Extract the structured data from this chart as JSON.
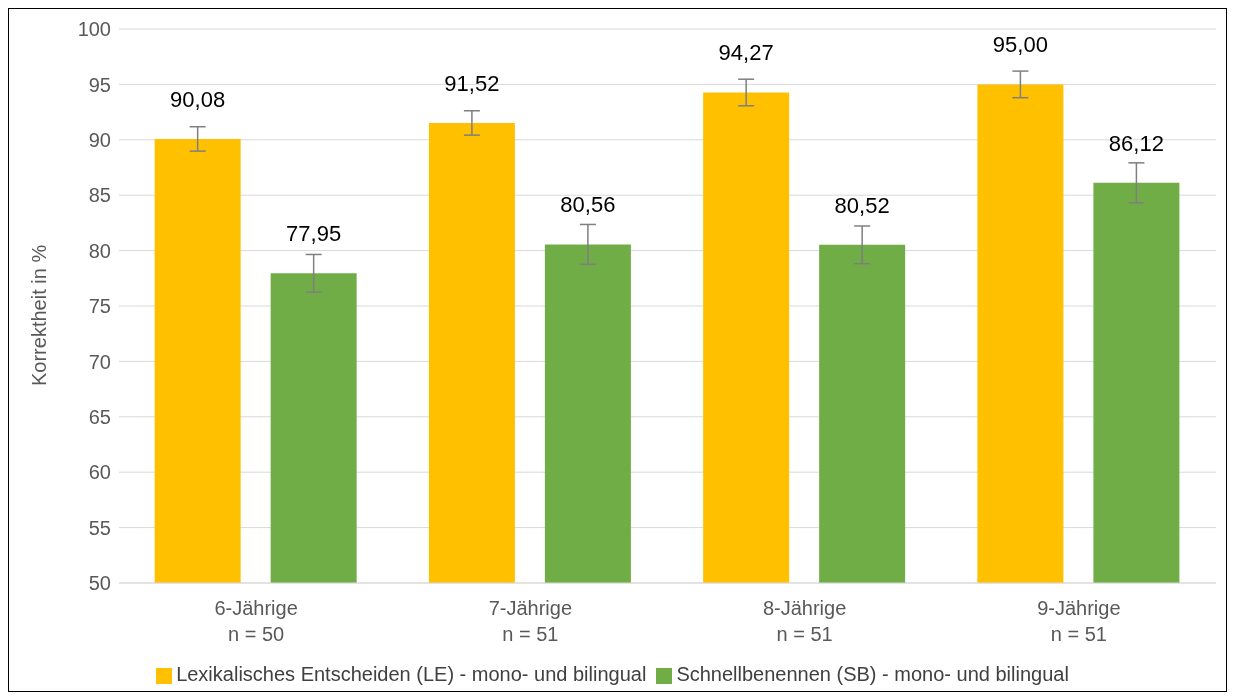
{
  "chart_data": {
    "type": "bar",
    "ylabel": "Korrektheit in %",
    "categories": [
      "6-Jährige\nn = 50",
      "7-Jährige\nn = 51",
      "8-Jährige\nn = 51",
      "9-Jährige\nn = 51"
    ],
    "series": [
      {
        "name": "Lexikalisches Entscheiden (LE) - mono- und bilingual",
        "color": "#ffc000",
        "values": [
          90.08,
          91.52,
          94.27,
          95.0
        ],
        "value_labels": [
          "90,08",
          "91,52",
          "94,27",
          "95,00"
        ],
        "errors": [
          1.1,
          1.1,
          1.2,
          1.2
        ]
      },
      {
        "name": "Schnellbenennen (SB) - mono- und bilingual",
        "color": "#70ad47",
        "values": [
          77.95,
          80.56,
          80.52,
          86.12
        ],
        "value_labels": [
          "77,95",
          "80,56",
          "80,52",
          "86,12"
        ],
        "errors": [
          1.7,
          1.8,
          1.7,
          1.8
        ]
      }
    ],
    "ylim": [
      50,
      100
    ],
    "yticks": [
      50,
      55,
      60,
      65,
      70,
      75,
      80,
      85,
      90,
      95,
      100
    ],
    "grid": "y",
    "legend": "bottom"
  }
}
